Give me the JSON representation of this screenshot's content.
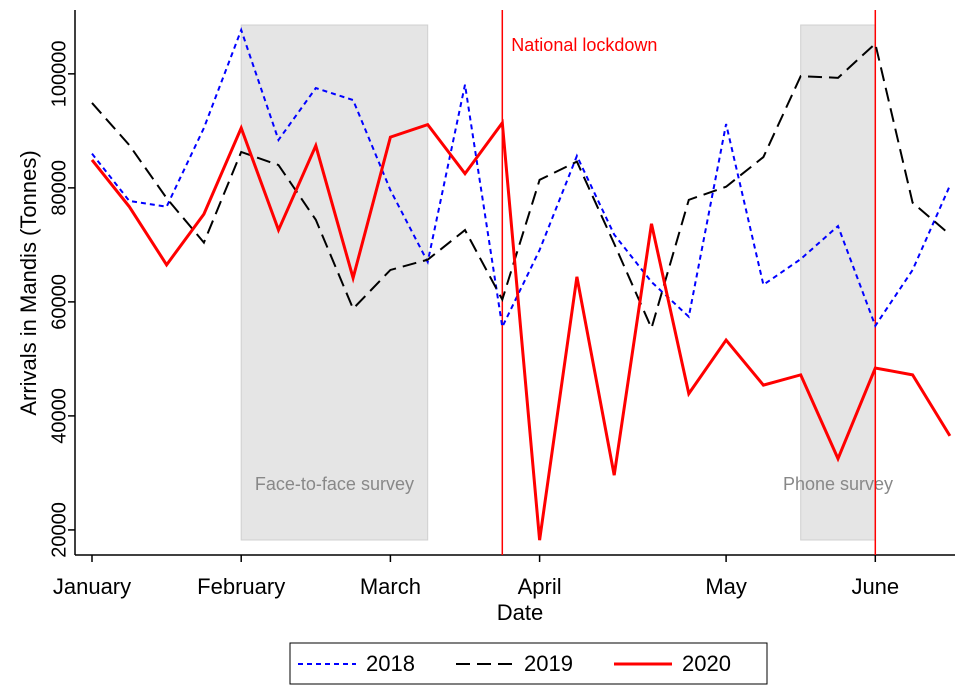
{
  "chart_data": {
    "type": "line",
    "x_label": "Date",
    "y_label": "Arrivals in Mandis (Tonnes)",
    "categories": [
      "January",
      null,
      null,
      null,
      "February",
      null,
      null,
      null,
      "March",
      null,
      null,
      null,
      "April",
      null,
      null,
      null,
      null,
      "May",
      null,
      null,
      null,
      "June",
      null,
      null
    ],
    "ylim": [
      15600,
      111200
    ],
    "yticks": [
      20000,
      40000,
      60000,
      80000,
      100000
    ],
    "series": [
      {
        "name": "2018",
        "color": "#0000ff",
        "dash": "5,4",
        "values": [
          86000,
          77700,
          76700,
          90500,
          107700,
          88400,
          97500,
          95400,
          79600,
          67000,
          98100,
          55600,
          69100,
          85600,
          71800,
          63500,
          57400,
          91200,
          63000,
          67500,
          73300,
          55800,
          65600,
          80400
        ]
      },
      {
        "name": "2019",
        "color": "#000000",
        "dash": "14,7",
        "values": [
          94900,
          87500,
          78200,
          70400,
          86300,
          84000,
          74400,
          58800,
          65600,
          67400,
          72600,
          60400,
          81400,
          84600,
          70200,
          55400,
          77900,
          80200,
          85400,
          99600,
          99300,
          105300,
          77400,
          71800
        ]
      },
      {
        "name": "2020",
        "color": "#ff0000",
        "dash": "none",
        "values": [
          84900,
          76700,
          66500,
          75400,
          90500,
          72600,
          87400,
          64200,
          88900,
          91100,
          82500,
          91400,
          18200,
          64400,
          29600,
          73700,
          43900,
          53300,
          45400,
          47200,
          32500,
          48400,
          47200,
          36500
        ]
      }
    ],
    "shaded_regions": [
      {
        "label": "Face-to-face survey",
        "start": 4,
        "end": 9
      },
      {
        "label": "Phone survey",
        "start": 19,
        "end": 21
      }
    ],
    "vertical_lines": [
      {
        "label": "National lockdown",
        "x": 11
      },
      {
        "x": 21
      }
    ]
  }
}
